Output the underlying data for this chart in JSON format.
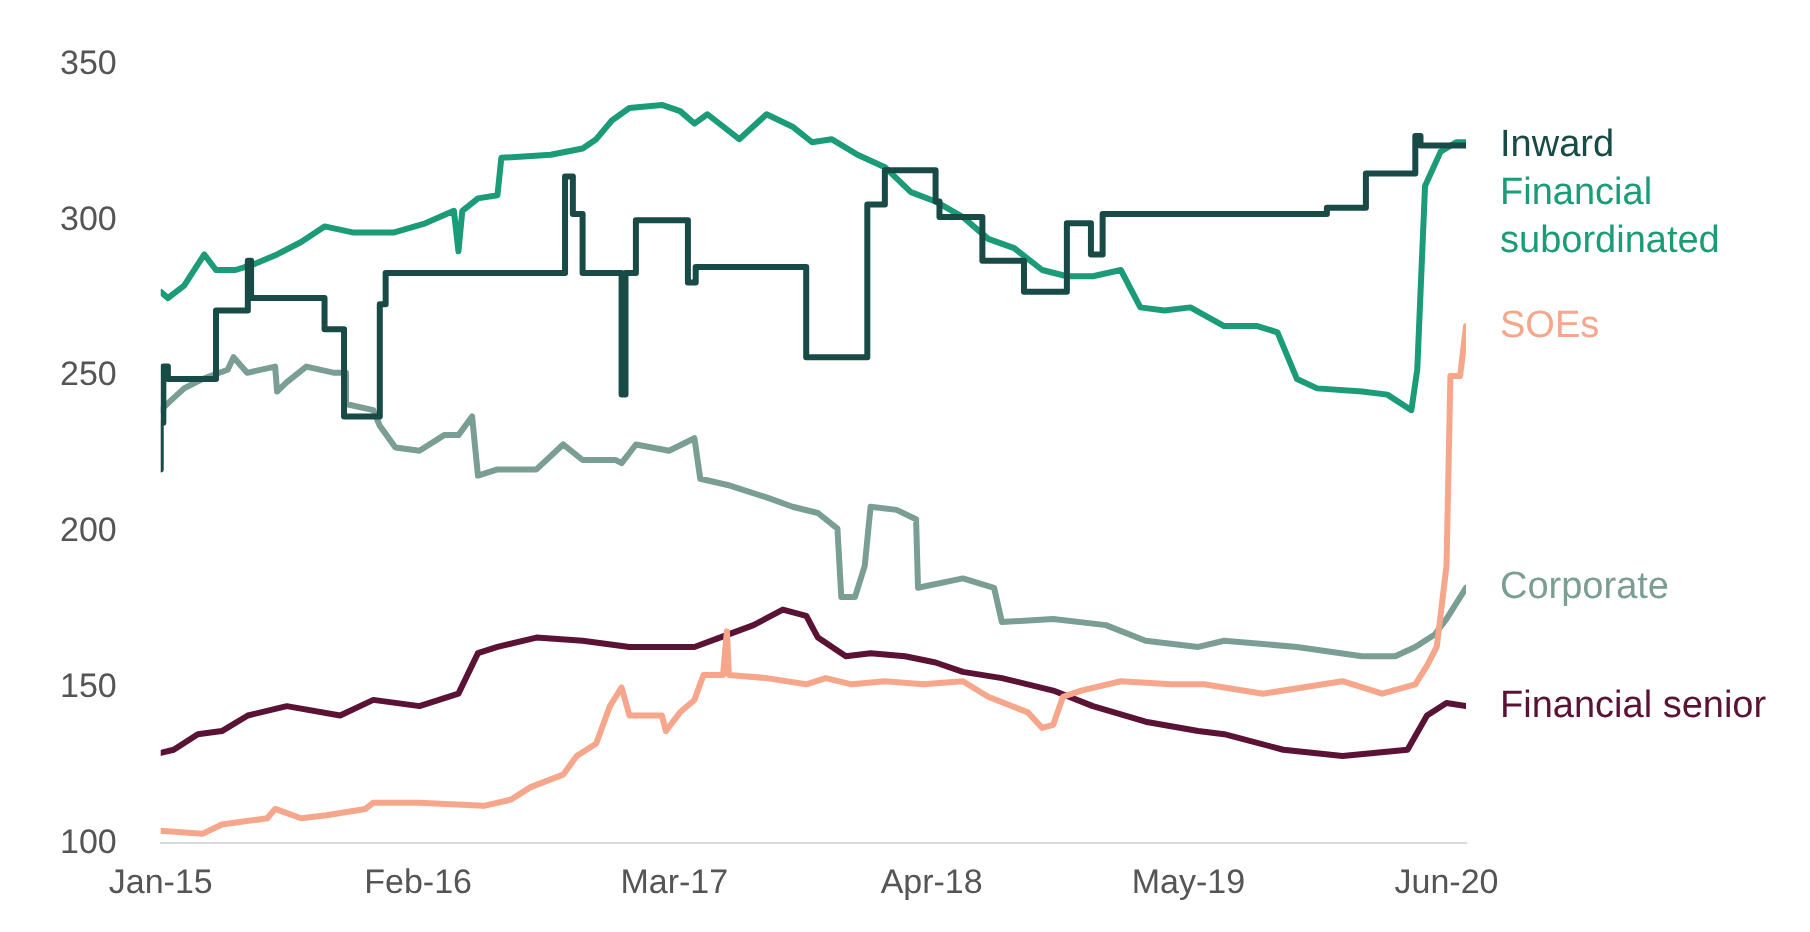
{
  "chart_data": {
    "type": "line",
    "xticks": [
      {
        "value": "2015-01-01",
        "label": "Jan-15"
      },
      {
        "value": "2016-02-01",
        "label": "Feb-16"
      },
      {
        "value": "2017-03-01",
        "label": "Mar-17"
      },
      {
        "value": "2018-04-01",
        "label": "Apr-18"
      },
      {
        "value": "2019-05-01",
        "label": "May-19"
      },
      {
        "value": "2020-06-01",
        "label": "Jun-20"
      }
    ],
    "xlim": [
      "2015-01-01",
      "2020-07-01"
    ],
    "ylim": [
      100,
      350
    ],
    "yticks": [
      100,
      150,
      200,
      250,
      300,
      350
    ],
    "grid": false,
    "legend": false,
    "marker": "none",
    "line_style": "solid",
    "series": [
      {
        "name": "Inward",
        "type": "step",
        "color": "#184a46",
        "x": [
          "2015-01-01",
          "2015-01-05",
          "2015-01-12",
          "2015-03-27",
          "2015-05-15",
          "2015-05-20",
          "2015-09-10",
          "2015-10-10",
          "2015-12-04",
          "2015-12-13",
          "2016-09-14",
          "2016-09-26",
          "2016-10-11",
          "2016-12-10",
          "2016-12-16",
          "2017-01-01",
          "2017-03-22",
          "2017-04-03",
          "2017-09-20",
          "2017-12-23",
          "2018-01-19",
          "2018-04-07",
          "2018-04-13",
          "2018-06-18",
          "2018-08-21",
          "2018-10-26",
          "2018-12-02",
          "2018-12-20",
          "2019-11-30",
          "2020-01-29",
          "2020-04-14",
          "2020-04-22",
          "2020-06-16",
          "2020-07-01"
        ],
        "values": [
          220,
          235,
          253,
          249,
          271,
          287,
          275,
          265,
          237,
          273,
          283,
          314,
          302,
          283,
          244,
          283,
          300,
          280,
          285,
          256,
          305,
          316,
          306,
          301,
          287,
          277,
          299,
          289,
          302,
          304,
          315,
          327,
          324,
          324
        ]
      },
      {
        "name": "Financial subordinated",
        "color": "#1c9b78",
        "x": [
          "2015-01-01",
          "2015-01-12",
          "2015-02-06",
          "2015-03-09",
          "2015-03-27",
          "2015-04-26",
          "2015-05-26",
          "2015-06-29",
          "2015-08-05",
          "2015-09-10",
          "2015-10-25",
          "2015-12-25",
          "2016-02-12",
          "2016-03-27",
          "2016-04-03",
          "2016-04-09",
          "2016-05-03",
          "2016-06-02",
          "2016-06-08",
          "2016-08-23",
          "2016-10-11",
          "2016-11-01",
          "2016-11-25",
          "2016-12-22",
          "2017-02-10",
          "2017-03-10",
          "2017-04-01",
          "2017-04-21",
          "2017-06-09",
          "2017-07-21",
          "2017-08-30",
          "2017-09-29",
          "2017-10-29",
          "2017-12-08",
          "2018-01-19",
          "2018-02-28",
          "2018-04-07",
          "2018-05-19",
          "2018-06-27",
          "2018-08-06",
          "2018-09-18",
          "2018-10-26",
          "2018-12-05",
          "2019-01-17",
          "2019-02-16",
          "2019-03-25",
          "2019-05-04",
          "2019-06-25",
          "2019-08-15",
          "2019-09-15",
          "2019-10-15",
          "2019-11-15",
          "2020-01-23",
          "2020-03-02",
          "2020-04-08",
          "2020-04-17",
          "2020-04-29",
          "2020-05-23",
          "2020-06-16",
          "2020-07-01"
        ],
        "values": [
          277,
          275,
          279,
          289,
          284,
          284,
          286,
          289,
          293,
          298,
          296,
          296,
          299,
          303,
          290,
          303,
          307,
          308,
          320,
          321,
          323,
          326,
          332,
          336,
          337,
          335,
          331,
          334,
          326,
          334,
          330,
          325,
          326,
          321,
          317,
          309,
          306,
          301,
          294,
          291,
          284,
          282,
          282,
          284,
          272,
          271,
          272,
          266,
          266,
          264,
          249,
          246,
          245,
          244,
          239,
          252,
          311,
          322,
          325,
          325
        ]
      },
      {
        "name": "SOEs",
        "color": "#f6a68b",
        "x": [
          "2015-01-01",
          "2015-03-06",
          "2015-04-05",
          "2015-06-14",
          "2015-06-26",
          "2015-08-05",
          "2015-09-13",
          "2015-11-12",
          "2015-11-24",
          "2016-02-03",
          "2016-05-12",
          "2016-06-23",
          "2016-07-23",
          "2016-09-11",
          "2016-10-02",
          "2016-11-01",
          "2016-11-22",
          "2016-12-10",
          "2016-12-22",
          "2017-02-10",
          "2017-02-16",
          "2017-03-10",
          "2017-04-01",
          "2017-04-15",
          "2017-05-15",
          "2017-05-21",
          "2017-05-24",
          "2017-07-21",
          "2017-09-20",
          "2017-10-20",
          "2017-11-29",
          "2018-01-19",
          "2018-03-19",
          "2018-05-19",
          "2018-06-27",
          "2018-08-27",
          "2018-09-18",
          "2018-10-05",
          "2018-10-20",
          "2018-11-17",
          "2019-01-17",
          "2019-04-04",
          "2019-05-25",
          "2019-08-24",
          "2019-12-24",
          "2020-02-23",
          "2020-04-14",
          "2020-05-02",
          "2020-05-17",
          "2020-06-01",
          "2020-06-07",
          "2020-06-22",
          "2020-07-01"
        ],
        "values": [
          104,
          103,
          106,
          108,
          111,
          108,
          109,
          111,
          113,
          113,
          112,
          114,
          118,
          122,
          128,
          132,
          144,
          150,
          141,
          141,
          136,
          142,
          146,
          154,
          154,
          168,
          154,
          153,
          151,
          153,
          151,
          152,
          151,
          152,
          147,
          142,
          137,
          138,
          147,
          149,
          152,
          151,
          151,
          148,
          152,
          148,
          151,
          157,
          163,
          189,
          250,
          250,
          266
        ]
      },
      {
        "name": "Corporate",
        "color": "#7b9e94",
        "x": [
          "2015-01-01",
          "2015-01-16",
          "2015-02-06",
          "2015-03-06",
          "2015-04-14",
          "2015-04-23",
          "2015-05-14",
          "2015-06-26",
          "2015-06-29",
          "2015-07-14",
          "2015-08-13",
          "2015-09-25",
          "2015-10-10",
          "2015-10-13",
          "2015-11-24",
          "2015-12-04",
          "2015-12-28",
          "2016-02-03",
          "2016-03-12",
          "2016-04-03",
          "2016-04-24",
          "2016-05-03",
          "2016-06-02",
          "2016-08-01",
          "2016-09-11",
          "2016-10-11",
          "2016-12-01",
          "2016-12-10",
          "2017-01-01",
          "2017-02-21",
          "2017-04-01",
          "2017-04-10",
          "2017-05-22",
          "2017-07-21",
          "2017-08-30",
          "2017-10-08",
          "2017-11-07",
          "2017-11-13",
          "2017-12-04",
          "2017-12-19",
          "2017-12-28",
          "2018-02-06",
          "2018-03-08",
          "2018-03-11",
          "2018-05-19",
          "2018-07-06",
          "2018-07-18",
          "2018-10-05",
          "2018-12-25",
          "2019-02-24",
          "2019-05-16",
          "2019-06-25",
          "2019-10-15",
          "2020-01-23",
          "2020-03-14",
          "2020-04-14",
          "2020-05-14",
          "2020-06-01",
          "2020-07-01"
        ],
        "values": [
          239,
          242,
          246,
          249,
          252,
          256,
          251,
          253,
          245,
          248,
          253,
          251,
          251,
          241,
          239,
          234,
          227,
          226,
          231,
          231,
          237,
          218,
          220,
          220,
          228,
          223,
          223,
          222,
          228,
          226,
          230,
          217,
          215,
          211,
          208,
          206,
          201,
          179,
          179,
          189,
          208,
          207,
          204,
          182,
          185,
          182,
          171,
          172,
          170,
          165,
          163,
          165,
          163,
          160,
          160,
          163,
          167,
          172,
          182
        ]
      },
      {
        "name": "Financial senior",
        "color": "#5a1235",
        "x": [
          "2015-01-01",
          "2015-01-21",
          "2015-02-27",
          "2015-04-05",
          "2015-05-15",
          "2015-07-14",
          "2015-10-04",
          "2015-11-24",
          "2016-02-03",
          "2016-04-03",
          "2016-05-03",
          "2016-06-02",
          "2016-08-01",
          "2016-10-11",
          "2016-12-22",
          "2017-02-10",
          "2017-04-01",
          "2017-05-10",
          "2017-07-01",
          "2017-08-15",
          "2017-09-20",
          "2017-10-08",
          "2017-11-20",
          "2017-12-28",
          "2018-02-19",
          "2018-04-07",
          "2018-05-19",
          "2018-07-18",
          "2018-10-05",
          "2018-12-05",
          "2019-02-24",
          "2019-05-16",
          "2019-06-25",
          "2019-09-24",
          "2019-12-24",
          "2020-04-02",
          "2020-05-02",
          "2020-06-01",
          "2020-07-01"
        ],
        "values": [
          129,
          130,
          135,
          136,
          141,
          144,
          141,
          146,
          144,
          148,
          161,
          163,
          166,
          165,
          163,
          163,
          163,
          166,
          170,
          175,
          173,
          166,
          160,
          161,
          160,
          158,
          155,
          153,
          149,
          144,
          139,
          136,
          135,
          130,
          128,
          130,
          141,
          145,
          144
        ]
      }
    ]
  }
}
